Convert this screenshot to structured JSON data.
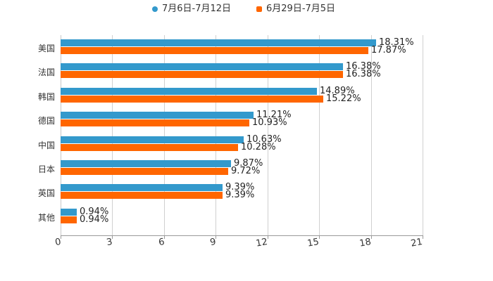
{
  "chart_data": {
    "type": "bar",
    "orientation": "horizontal",
    "title": "",
    "xlabel": "",
    "ylabel": "",
    "categories": [
      "美国",
      "法国",
      "韩国",
      "德国",
      "中国",
      "日本",
      "英国",
      "其他"
    ],
    "series": [
      {
        "name": "7月6日-7月12日",
        "color": "#3399cc",
        "values": [
          18.31,
          16.38,
          14.89,
          11.21,
          10.63,
          9.87,
          9.39,
          0.94
        ],
        "labels": [
          "18.31%",
          "16.38%",
          "14.89%",
          "11.21%",
          "10.63%",
          "9.87%",
          "9.39%",
          "0.94%"
        ]
      },
      {
        "name": "6月29日-7月5日",
        "color": "#ff6600",
        "values": [
          17.87,
          16.38,
          15.22,
          10.93,
          10.28,
          9.72,
          9.39,
          0.94
        ],
        "labels": [
          "17.87%",
          "16.38%",
          "15.22%",
          "10.93%",
          "10.28%",
          "9.72%",
          "9.39%",
          "0.94%"
        ]
      }
    ],
    "xlim": [
      0,
      21
    ],
    "xticks": [
      "0",
      "3",
      "6",
      "9",
      "12",
      "15",
      "18",
      "21"
    ],
    "grid": true,
    "legend_position": "top"
  },
  "legend": {
    "s1": "7月6日-7月12日",
    "s2": "6月29日-7月5日"
  }
}
